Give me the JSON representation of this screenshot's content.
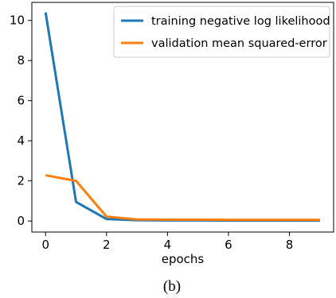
{
  "chart_data": {
    "type": "line",
    "xlabel": "epochs",
    "ylabel": "",
    "xlim": [
      -0.45,
      9.45
    ],
    "ylim": [
      -0.55,
      10.9
    ],
    "xticks": [
      0,
      2,
      4,
      6,
      8
    ],
    "yticks": [
      0,
      2,
      4,
      6,
      8,
      10
    ],
    "grid": false,
    "legend_position": "top-right",
    "x": [
      0,
      1,
      2,
      3,
      4,
      5,
      6,
      7,
      8,
      9
    ],
    "series": [
      {
        "name": "training negative log likelihood",
        "color": "#1f77b4",
        "values": [
          10.4,
          0.95,
          0.1,
          0.04,
          0.03,
          0.03,
          0.02,
          0.02,
          0.02,
          0.02
        ]
      },
      {
        "name": "validation mean squared-error",
        "color": "#ff7f0e",
        "values": [
          2.28,
          2.0,
          0.22,
          0.08,
          0.07,
          0.07,
          0.06,
          0.06,
          0.06,
          0.06
        ]
      }
    ]
  },
  "caption": "(b)"
}
